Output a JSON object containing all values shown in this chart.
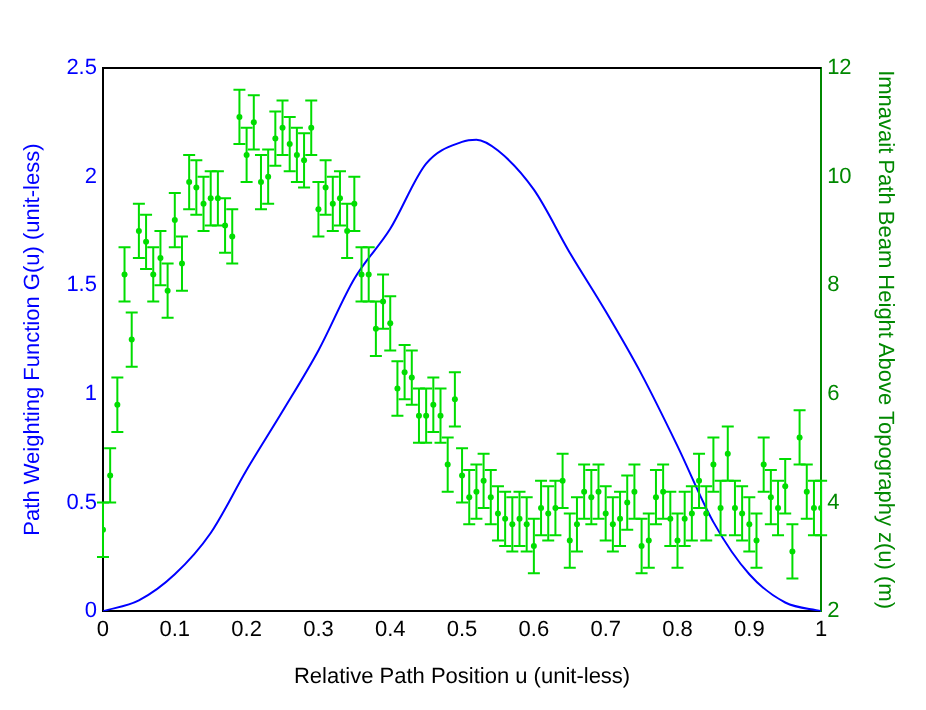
{
  "chart_data": {
    "type": "line",
    "xlabel": "Relative Path Position u (unit-less)",
    "ylabel": "Path Weighting Function G(u) (unit-less)",
    "y2label": "Imnavait Path Beam Height Above Topography z(u) (m)",
    "xlim": [
      0,
      1
    ],
    "xticks": [
      0,
      0.1,
      0.2,
      0.3,
      0.4,
      0.5,
      0.6,
      0.7,
      0.8,
      0.9,
      1
    ],
    "ylim": [
      0,
      2.5
    ],
    "yticks": [
      0,
      0.5,
      1,
      1.5,
      2,
      2.5
    ],
    "y2lim": [
      2,
      12
    ],
    "y2ticks": [
      2,
      4,
      6,
      8,
      10,
      12
    ],
    "grid": false,
    "legend": false,
    "series": [
      {
        "type": "line",
        "color": "#0000ff",
        "axis": "y",
        "marker": "none",
        "line_style": "solid",
        "x": [
          0,
          0.05,
          0.1,
          0.15,
          0.2,
          0.25,
          0.3,
          0.35,
          0.4,
          0.45,
          0.5,
          0.52,
          0.55,
          0.6,
          0.65,
          0.7,
          0.75,
          0.8,
          0.85,
          0.9,
          0.95,
          1
        ],
        "values": [
          0,
          0.05,
          0.17,
          0.36,
          0.65,
          0.92,
          1.2,
          1.53,
          1.76,
          2.06,
          2.16,
          2.17,
          2.12,
          1.94,
          1.65,
          1.38,
          1.09,
          0.76,
          0.41,
          0.17,
          0.04,
          0
        ]
      },
      {
        "type": "scatter",
        "color": "#00dd00",
        "axis": "y2",
        "marker": "circle",
        "x": [
          0,
          0.01,
          0.02,
          0.03,
          0.04,
          0.05,
          0.06,
          0.07,
          0.08,
          0.09,
          0.1,
          0.11,
          0.12,
          0.13,
          0.14,
          0.15,
          0.16,
          0.17,
          0.18,
          0.19,
          0.2,
          0.21,
          0.22,
          0.23,
          0.24,
          0.25,
          0.26,
          0.27,
          0.28,
          0.29,
          0.3,
          0.31,
          0.32,
          0.33,
          0.34,
          0.35,
          0.36,
          0.37,
          0.38,
          0.39,
          0.4,
          0.41,
          0.42,
          0.43,
          0.44,
          0.45,
          0.46,
          0.47,
          0.48,
          0.49,
          0.5,
          0.51,
          0.52,
          0.53,
          0.54,
          0.55,
          0.56,
          0.57,
          0.58,
          0.59,
          0.6,
          0.61,
          0.62,
          0.63,
          0.64,
          0.65,
          0.66,
          0.67,
          0.68,
          0.69,
          0.7,
          0.71,
          0.72,
          0.73,
          0.74,
          0.75,
          0.76,
          0.77,
          0.78,
          0.79,
          0.8,
          0.81,
          0.82,
          0.83,
          0.84,
          0.85,
          0.86,
          0.87,
          0.88,
          0.89,
          0.9,
          0.91,
          0.92,
          0.93,
          0.94,
          0.95,
          0.96,
          0.97,
          0.98,
          0.99,
          1
        ],
        "values": [
          3.5,
          4.5,
          5.8,
          8.2,
          7.0,
          9.0,
          8.8,
          8.2,
          8.5,
          7.9,
          9.2,
          8.4,
          9.9,
          9.8,
          9.5,
          9.6,
          9.6,
          9.1,
          8.9,
          11.1,
          10.4,
          11.0,
          9.9,
          10.0,
          10.7,
          10.9,
          10.6,
          10.4,
          10.3,
          10.9,
          9.4,
          9.8,
          9.5,
          9.6,
          9.0,
          9.5,
          8.2,
          8.2,
          7.2,
          7.7,
          7.3,
          6.1,
          6.4,
          6.3,
          5.6,
          5.6,
          5.8,
          5.6,
          4.7,
          5.9,
          4.5,
          4.1,
          4.2,
          4.4,
          4.1,
          3.8,
          3.7,
          3.6,
          3.7,
          3.6,
          3.2,
          3.9,
          3.8,
          3.9,
          4.4,
          3.3,
          3.6,
          4.2,
          4.1,
          4.2,
          3.8,
          3.6,
          3.7,
          4.0,
          4.2,
          3.2,
          3.3,
          4.1,
          4.2,
          3.7,
          3.3,
          3.7,
          3.8,
          4.4,
          3.8,
          4.7,
          3.9,
          4.9,
          3.9,
          3.8,
          3.6,
          3.3,
          4.7,
          4.1,
          3.9,
          4.3,
          3.1,
          5.2,
          4.2,
          3.9,
          3.9
        ],
        "errors": [
          0.5,
          0.5,
          0.5,
          0.5,
          0.5,
          0.5,
          0.5,
          0.5,
          0.5,
          0.5,
          0.5,
          0.5,
          0.5,
          0.5,
          0.5,
          0.5,
          0.5,
          0.5,
          0.5,
          0.5,
          0.5,
          0.5,
          0.5,
          0.5,
          0.5,
          0.5,
          0.5,
          0.5,
          0.5,
          0.5,
          0.5,
          0.5,
          0.5,
          0.5,
          0.5,
          0.5,
          0.5,
          0.5,
          0.5,
          0.5,
          0.5,
          0.5,
          0.5,
          0.5,
          0.5,
          0.5,
          0.5,
          0.5,
          0.5,
          0.5,
          0.5,
          0.5,
          0.5,
          0.5,
          0.5,
          0.5,
          0.5,
          0.5,
          0.5,
          0.5,
          0.5,
          0.5,
          0.5,
          0.5,
          0.5,
          0.5,
          0.5,
          0.5,
          0.5,
          0.5,
          0.5,
          0.5,
          0.5,
          0.5,
          0.5,
          0.5,
          0.5,
          0.5,
          0.5,
          0.5,
          0.5,
          0.5,
          0.5,
          0.5,
          0.5,
          0.5,
          0.5,
          0.5,
          0.5,
          0.5,
          0.5,
          0.5,
          0.5,
          0.5,
          0.5,
          0.5,
          0.5,
          0.5,
          0.5,
          0.5,
          0.5
        ]
      }
    ]
  }
}
